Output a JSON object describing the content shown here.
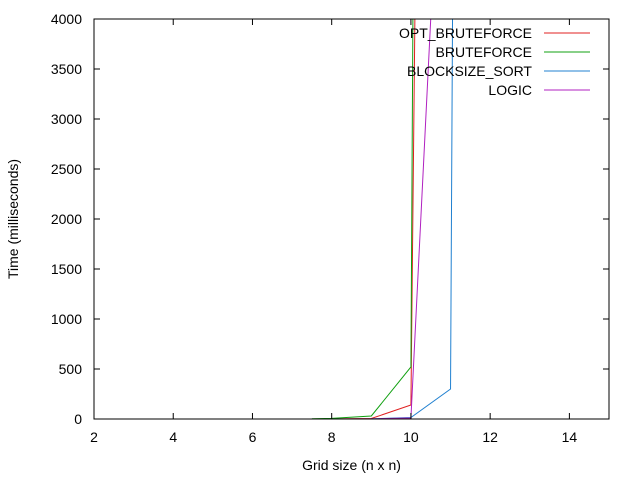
{
  "chart_data": {
    "type": "line",
    "xlabel": "Grid size (n x n)",
    "ylabel": "Time (milliseconds)",
    "xlim": [
      2,
      15
    ],
    "ylim": [
      0,
      4000
    ],
    "xticks": [
      2,
      4,
      6,
      8,
      10,
      12,
      14
    ],
    "yticks": [
      0,
      500,
      1000,
      1500,
      2000,
      2500,
      3000,
      3500,
      4000
    ],
    "grid": false,
    "legend_position": "top-right",
    "series": [
      {
        "name": "OPT_BRUTEFORCE",
        "color": "#e02020",
        "points": [
          [
            7.5,
            0
          ],
          [
            8,
            1
          ],
          [
            9,
            5
          ],
          [
            10,
            140
          ],
          [
            10.1,
            4000
          ]
        ]
      },
      {
        "name": "BRUTEFORCE",
        "color": "#10a010",
        "points": [
          [
            7.5,
            2
          ],
          [
            8,
            6
          ],
          [
            9,
            30
          ],
          [
            10,
            520
          ],
          [
            10.05,
            4000
          ]
        ]
      },
      {
        "name": "BLOCKSIZE_SORT",
        "color": "#2080d0",
        "points": [
          [
            7.5,
            0
          ],
          [
            8,
            0
          ],
          [
            9,
            1
          ],
          [
            10,
            15
          ],
          [
            11,
            300
          ],
          [
            11.05,
            4000
          ]
        ]
      },
      {
        "name": "LOGIC",
        "color": "#b020c0",
        "points": [
          [
            7.5,
            0
          ],
          [
            8,
            0
          ],
          [
            9,
            1
          ],
          [
            10,
            10
          ],
          [
            10.5,
            4000
          ]
        ]
      }
    ]
  }
}
